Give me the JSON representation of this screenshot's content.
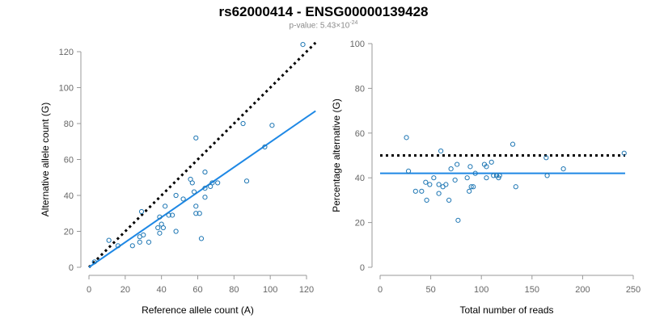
{
  "title": "rs62000414 - ENSG00000139428",
  "subtitle": {
    "prefix": "p-value: 5.43×10",
    "exponent": "-24"
  },
  "colors": {
    "points": "#1f77b4",
    "fit_line": "#1e88e5",
    "reference_line": "#000000",
    "axis": "#999999"
  },
  "chart_data": [
    {
      "type": "scatter",
      "xlabel": "Reference allele count (A)",
      "ylabel": "Alternative allele count (G)",
      "xlim": [
        0,
        120
      ],
      "ylim": [
        0,
        120
      ],
      "xticks": [
        0,
        20,
        40,
        60,
        80,
        100,
        120
      ],
      "yticks": [
        0,
        20,
        40,
        60,
        80,
        100,
        120
      ],
      "points": [
        [
          3,
          3
        ],
        [
          11,
          15
        ],
        [
          16,
          12
        ],
        [
          24,
          12
        ],
        [
          28,
          14
        ],
        [
          28,
          17
        ],
        [
          29,
          31
        ],
        [
          30,
          18
        ],
        [
          33,
          14
        ],
        [
          38,
          22
        ],
        [
          39,
          19
        ],
        [
          39,
          28
        ],
        [
          40,
          24
        ],
        [
          41,
          22
        ],
        [
          42,
          34
        ],
        [
          44,
          29
        ],
        [
          46,
          29
        ],
        [
          48,
          40
        ],
        [
          48,
          20
        ],
        [
          52,
          38
        ],
        [
          56,
          49
        ],
        [
          57,
          47
        ],
        [
          58,
          42
        ],
        [
          59,
          34
        ],
        [
          59,
          72
        ],
        [
          59,
          30
        ],
        [
          61,
          30
        ],
        [
          62,
          16
        ],
        [
          64,
          53
        ],
        [
          64,
          44
        ],
        [
          64,
          39
        ],
        [
          67,
          45
        ],
        [
          68,
          47
        ],
        [
          71,
          47
        ],
        [
          85,
          80
        ],
        [
          87,
          48
        ],
        [
          97,
          67
        ],
        [
          101,
          79
        ],
        [
          118,
          124
        ]
      ],
      "fit_line": [
        [
          0,
          0
        ],
        [
          125,
          87
        ]
      ],
      "reference_line": [
        [
          0,
          0
        ],
        [
          125,
          125
        ]
      ]
    },
    {
      "type": "scatter",
      "xlabel": "Total number of reads",
      "ylabel": "Percentage alternative (G)",
      "xlim": [
        0,
        250
      ],
      "ylim": [
        0,
        100
      ],
      "xticks": [
        0,
        50,
        100,
        150,
        200,
        250
      ],
      "yticks": [
        0,
        20,
        40,
        60,
        80,
        100
      ],
      "points": [
        [
          26,
          58
        ],
        [
          28,
          43
        ],
        [
          35,
          34
        ],
        [
          41,
          34
        ],
        [
          45,
          38
        ],
        [
          46,
          30
        ],
        [
          49,
          37
        ],
        [
          53,
          40
        ],
        [
          58,
          37
        ],
        [
          58,
          33
        ],
        [
          60,
          52
        ],
        [
          62,
          36
        ],
        [
          65,
          37
        ],
        [
          68,
          30
        ],
        [
          70,
          44
        ],
        [
          74,
          39
        ],
        [
          76,
          46
        ],
        [
          77,
          21
        ],
        [
          86,
          40
        ],
        [
          88,
          34
        ],
        [
          89,
          45
        ],
        [
          90,
          36
        ],
        [
          92,
          36
        ],
        [
          94,
          42
        ],
        [
          103,
          46
        ],
        [
          105,
          40
        ],
        [
          105,
          45
        ],
        [
          110,
          47
        ],
        [
          112,
          41
        ],
        [
          115,
          41
        ],
        [
          117,
          40
        ],
        [
          118,
          41
        ],
        [
          131,
          55
        ],
        [
          134,
          36
        ],
        [
          164,
          49
        ],
        [
          165,
          41
        ],
        [
          181,
          44
        ],
        [
          241,
          51
        ]
      ],
      "fit_line": [
        [
          0,
          42
        ],
        [
          242,
          42
        ]
      ],
      "reference_line": [
        [
          0,
          50
        ],
        [
          242,
          50
        ]
      ]
    }
  ]
}
